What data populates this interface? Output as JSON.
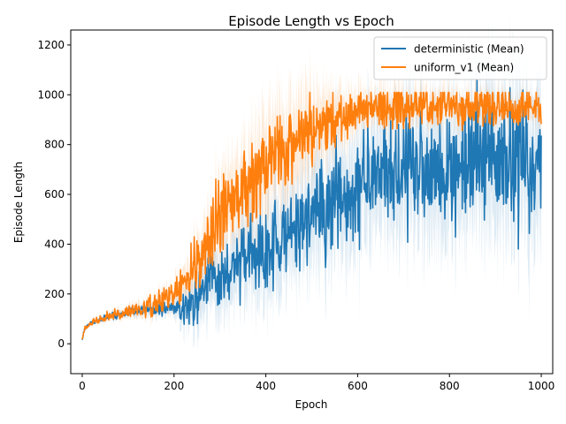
{
  "chart_data": {
    "type": "line",
    "title": "Episode Length vs Epoch",
    "xlabel": "Epoch",
    "ylabel": "Episode Length",
    "xlim": [
      -25,
      1025
    ],
    "ylim": [
      -120,
      1260
    ],
    "x_ticks": [
      0,
      200,
      400,
      600,
      800,
      1000
    ],
    "y_ticks": [
      0,
      200,
      400,
      600,
      800,
      1000,
      1200
    ],
    "grid": false,
    "legend_position": "top-right",
    "series": [
      {
        "name": "deterministic (Mean)",
        "color": "#1f77b4",
        "keypoints": [
          [
            0,
            20
          ],
          [
            5,
            60
          ],
          [
            20,
            85
          ],
          [
            50,
            105
          ],
          [
            100,
            125
          ],
          [
            150,
            140
          ],
          [
            200,
            140
          ],
          [
            240,
            160
          ],
          [
            260,
            230
          ],
          [
            300,
            260
          ],
          [
            350,
            330
          ],
          [
            400,
            380
          ],
          [
            450,
            430
          ],
          [
            500,
            510
          ],
          [
            550,
            580
          ],
          [
            600,
            620
          ],
          [
            650,
            660
          ],
          [
            700,
            700
          ],
          [
            750,
            720
          ],
          [
            800,
            700
          ],
          [
            850,
            720
          ],
          [
            900,
            740
          ],
          [
            950,
            720
          ],
          [
            1000,
            720
          ]
        ],
        "noise_amplitude": [
          [
            0,
            3
          ],
          [
            200,
            15
          ],
          [
            260,
            60
          ],
          [
            400,
            80
          ],
          [
            600,
            110
          ],
          [
            1000,
            130
          ]
        ],
        "band_halfwidth": [
          [
            0,
            5
          ],
          [
            200,
            30
          ],
          [
            260,
            120
          ],
          [
            400,
            170
          ],
          [
            500,
            190
          ],
          [
            700,
            230
          ],
          [
            1000,
            280
          ]
        ]
      },
      {
        "name": "uniform_v1 (Mean)",
        "color": "#ff7f0e",
        "keypoints": [
          [
            0,
            20
          ],
          [
            5,
            60
          ],
          [
            20,
            85
          ],
          [
            50,
            105
          ],
          [
            100,
            125
          ],
          [
            150,
            150
          ],
          [
            200,
            200
          ],
          [
            250,
            330
          ],
          [
            300,
            520
          ],
          [
            350,
            620
          ],
          [
            400,
            720
          ],
          [
            450,
            800
          ],
          [
            500,
            860
          ],
          [
            550,
            900
          ],
          [
            600,
            930
          ],
          [
            650,
            945
          ],
          [
            700,
            950
          ],
          [
            800,
            950
          ],
          [
            900,
            950
          ],
          [
            1000,
            950
          ]
        ],
        "noise_amplitude": [
          [
            0,
            3
          ],
          [
            200,
            25
          ],
          [
            300,
            80
          ],
          [
            400,
            80
          ],
          [
            500,
            70
          ],
          [
            600,
            50
          ],
          [
            1000,
            35
          ]
        ],
        "band_halfwidth": [
          [
            0,
            5
          ],
          [
            200,
            40
          ],
          [
            280,
            120
          ],
          [
            400,
            180
          ],
          [
            500,
            150
          ],
          [
            600,
            70
          ],
          [
            1000,
            40
          ]
        ]
      }
    ]
  }
}
